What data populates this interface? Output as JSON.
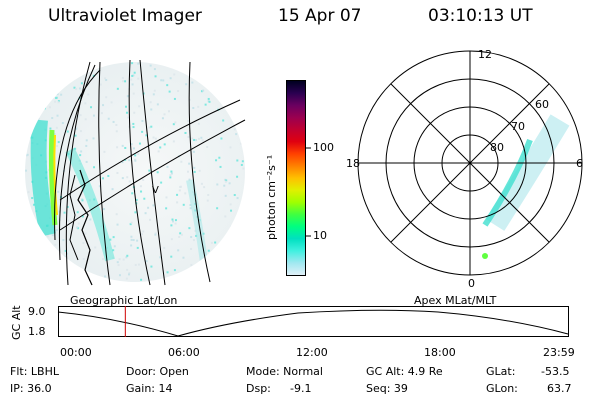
{
  "header": {
    "instrument": "Ultraviolet Imager",
    "date": "15 Apr 07",
    "time": "03:10:13 UT"
  },
  "left_panel": {
    "label": "Geographic Lat/Lon",
    "marker": "V"
  },
  "colorbar": {
    "unit_label": "photon cm⁻²s⁻¹",
    "ticks": [
      "100",
      "10"
    ],
    "scale": "log",
    "colors": [
      "#000020",
      "#2a0050",
      "#6a0060",
      "#9a0050",
      "#c00030",
      "#e00010",
      "#ff4000",
      "#ff8000",
      "#ffc000",
      "#e0f000",
      "#a0ff00",
      "#40ff40",
      "#00ff80",
      "#00e0c0",
      "#40f0e0",
      "#a0e8f0",
      "#e0f0f8"
    ]
  },
  "right_panel": {
    "label": "Apex MLat/MLT",
    "mlt_labels": [
      "12",
      "18",
      "6",
      "0"
    ],
    "mlat_labels": [
      "60",
      "70",
      "80"
    ]
  },
  "timeline": {
    "ylabel": "GC Alt",
    "yticks": [
      "9.0",
      "1.8"
    ],
    "xticks": [
      "00:00",
      "06:00",
      "12:00",
      "18:00",
      "23:59"
    ],
    "current_time_fraction": 0.132,
    "marker_color": "#d00000"
  },
  "footer": {
    "filter": "Flt: LBHL",
    "ip": "IP: 36.0",
    "door": "Door: Open",
    "gain": "Gain: 14",
    "mode": "Mode: Normal",
    "dsp_label": "Dsp:",
    "dsp_value": "-9.1",
    "gc_alt": "GC Alt: 4.9 Re",
    "seq": "Seq: 39",
    "glat_label": "GLat:",
    "glat_value": "-53.5",
    "glon_label": "GLon:",
    "glon_value": "63.7"
  }
}
